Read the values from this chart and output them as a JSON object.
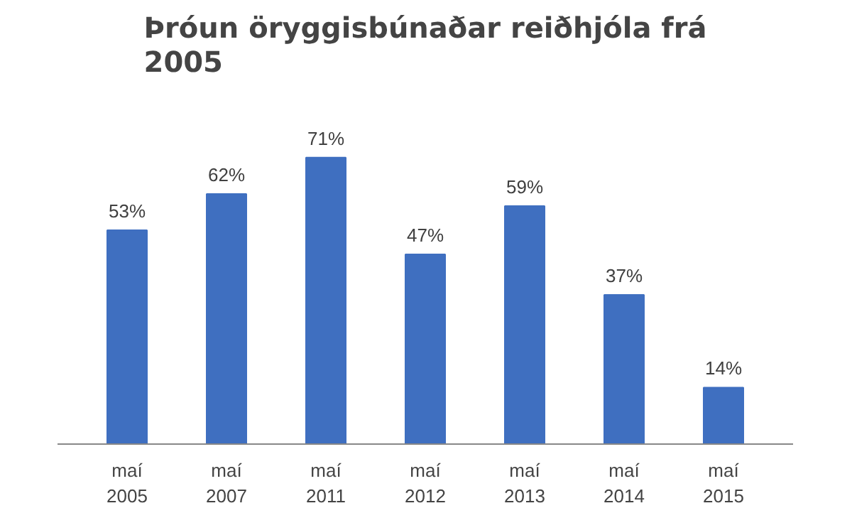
{
  "chart_data": {
    "type": "bar",
    "title": "Þróun öryggisbúnaðar reiðhjóla frá\n2005",
    "categories": [
      "maí\n2005",
      "maí\n2007",
      "maí\n2011",
      "maí\n2012",
      "maí\n2013",
      "maí\n2014",
      "maí\n2015"
    ],
    "values": [
      53,
      62,
      71,
      47,
      59,
      37,
      14
    ],
    "value_labels": [
      "53%",
      "62%",
      "71%",
      "47%",
      "59%",
      "37%",
      "14%"
    ],
    "color": "#3f6fc0"
  }
}
